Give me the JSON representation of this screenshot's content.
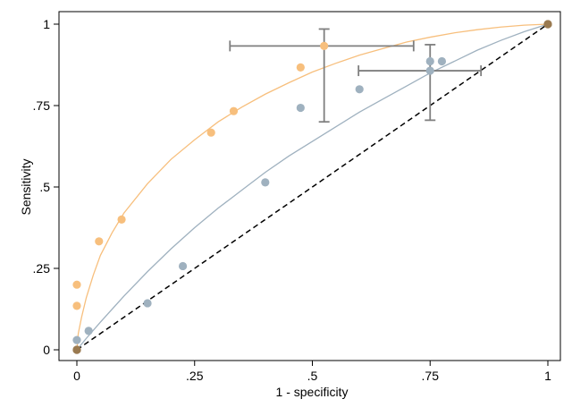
{
  "chart_data": {
    "type": "scatter",
    "xlabel": "1 - specificity",
    "ylabel": "Sensitivity",
    "xlim": [
      0,
      1
    ],
    "ylim": [
      0,
      1
    ],
    "x_ticks": [
      0,
      0.25,
      0.5,
      0.75,
      1
    ],
    "x_tick_labels": [
      "0",
      ".25",
      ".5",
      ".75",
      "1"
    ],
    "y_ticks": [
      0,
      0.25,
      0.5,
      0.75,
      1
    ],
    "y_tick_labels": [
      "0",
      ".25",
      ".5",
      ".75",
      "1"
    ],
    "grid": false,
    "legend": "none",
    "reference_line": {
      "x": [
        0,
        1
      ],
      "y": [
        0,
        1
      ],
      "style": "dashed",
      "color": "#000000"
    },
    "series": [
      {
        "color": "#f7bf7d",
        "points": [
          {
            "x": 0.0,
            "y": 0.0
          },
          {
            "x": 0.0,
            "y": 0.135
          },
          {
            "x": 0.0,
            "y": 0.2
          },
          {
            "x": 0.047,
            "y": 0.333
          },
          {
            "x": 0.095,
            "y": 0.4
          },
          {
            "x": 0.285,
            "y": 0.667
          },
          {
            "x": 0.333,
            "y": 0.733
          },
          {
            "x": 0.475,
            "y": 0.867
          },
          {
            "x": 0.525,
            "y": 0.933
          },
          {
            "x": 1.0,
            "y": 1.0
          }
        ],
        "curve": [
          [
            0,
            0
          ],
          [
            0.003,
            0.05
          ],
          [
            0.01,
            0.1
          ],
          [
            0.02,
            0.16
          ],
          [
            0.035,
            0.23
          ],
          [
            0.05,
            0.29
          ],
          [
            0.075,
            0.36
          ],
          [
            0.1,
            0.42
          ],
          [
            0.15,
            0.51
          ],
          [
            0.2,
            0.585
          ],
          [
            0.25,
            0.645
          ],
          [
            0.3,
            0.7
          ],
          [
            0.35,
            0.745
          ],
          [
            0.4,
            0.785
          ],
          [
            0.45,
            0.82
          ],
          [
            0.5,
            0.853
          ],
          [
            0.55,
            0.88
          ],
          [
            0.6,
            0.905
          ],
          [
            0.65,
            0.925
          ],
          [
            0.7,
            0.945
          ],
          [
            0.75,
            0.96
          ],
          [
            0.8,
            0.973
          ],
          [
            0.85,
            0.983
          ],
          [
            0.9,
            0.991
          ],
          [
            0.95,
            0.997
          ],
          [
            1,
            1
          ]
        ],
        "error_bar": {
          "x": 0.525,
          "y": 0.933,
          "x_low": 0.325,
          "x_high": 0.715,
          "y_low": 0.7,
          "y_high": 0.985
        }
      },
      {
        "color": "#9fb1bf",
        "points": [
          {
            "x": 0.0,
            "y": 0.0
          },
          {
            "x": 0.0,
            "y": 0.03
          },
          {
            "x": 0.025,
            "y": 0.058
          },
          {
            "x": 0.15,
            "y": 0.143
          },
          {
            "x": 0.225,
            "y": 0.257
          },
          {
            "x": 0.4,
            "y": 0.514
          },
          {
            "x": 0.475,
            "y": 0.743
          },
          {
            "x": 0.6,
            "y": 0.8
          },
          {
            "x": 0.75,
            "y": 0.857
          },
          {
            "x": 0.75,
            "y": 0.886
          },
          {
            "x": 0.775,
            "y": 0.886
          },
          {
            "x": 1.0,
            "y": 1.0
          }
        ],
        "curve": [
          [
            0,
            0
          ],
          [
            0.02,
            0.035
          ],
          [
            0.05,
            0.085
          ],
          [
            0.1,
            0.165
          ],
          [
            0.15,
            0.24
          ],
          [
            0.2,
            0.31
          ],
          [
            0.25,
            0.375
          ],
          [
            0.3,
            0.435
          ],
          [
            0.35,
            0.49
          ],
          [
            0.4,
            0.545
          ],
          [
            0.45,
            0.595
          ],
          [
            0.5,
            0.64
          ],
          [
            0.55,
            0.685
          ],
          [
            0.6,
            0.73
          ],
          [
            0.65,
            0.77
          ],
          [
            0.7,
            0.81
          ],
          [
            0.75,
            0.85
          ],
          [
            0.8,
            0.885
          ],
          [
            0.85,
            0.92
          ],
          [
            0.9,
            0.95
          ],
          [
            0.95,
            0.977
          ],
          [
            1,
            1
          ]
        ],
        "error_bar": {
          "x": 0.75,
          "y": 0.857,
          "x_low": 0.598,
          "x_high": 0.858,
          "y_low": 0.705,
          "y_high": 0.937
        }
      }
    ]
  }
}
